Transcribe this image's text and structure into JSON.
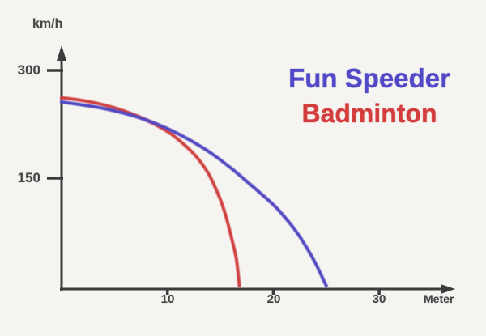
{
  "axis": {
    "color": "#3c3c3c",
    "label_color": "#474747"
  },
  "legend": {
    "items": [
      {
        "label": "Fun Speeder",
        "color": "#5149c6"
      },
      {
        "label": "Badminton",
        "color": "#d43d3d"
      }
    ]
  },
  "chart_data": {
    "type": "line",
    "title": "",
    "xlabel": "Meter",
    "ylabel": "km/h",
    "xlim": [
      0,
      37
    ],
    "ylim": [
      0,
      330
    ],
    "x_ticks": [
      10,
      20,
      30
    ],
    "y_ticks": [
      300,
      150
    ],
    "grid": false,
    "legend_position": "top-right",
    "series": [
      {
        "name": "Fun Speeder",
        "color": "#5348c2",
        "x": [
          0,
          2,
          4,
          6,
          8,
          10,
          12,
          14,
          16,
          18,
          20,
          21,
          22,
          23,
          24,
          25
        ],
        "y": [
          256,
          252,
          247,
          240,
          231,
          219,
          204,
          186,
          164,
          139,
          113,
          97,
          79,
          57,
          31,
          0
        ]
      },
      {
        "name": "Badminton",
        "color": "#d04343",
        "x": [
          0,
          2,
          4,
          6,
          8,
          10,
          11,
          12,
          13,
          14,
          15,
          15.5,
          16,
          16.5,
          16.8
        ],
        "y": [
          262,
          258,
          252,
          243,
          231,
          215,
          204,
          191,
          175,
          153,
          120,
          98,
          70,
          38,
          0
        ]
      }
    ]
  }
}
